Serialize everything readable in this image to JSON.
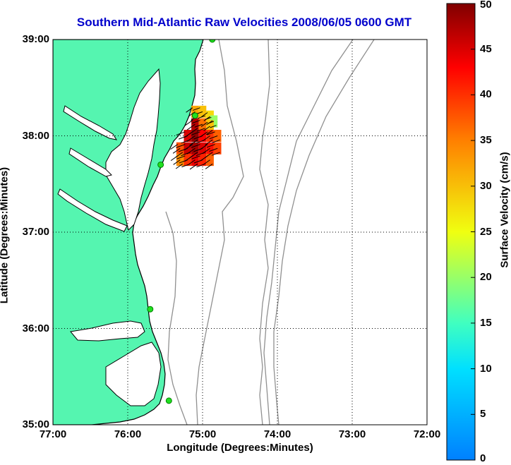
{
  "title": "Southern Mid-Atlantic Raw Velocities 2008/06/05 0600 GMT",
  "xlabel": "Longitude (Degrees:Minutes)",
  "ylabel": "Latitude (Degrees:Minutes)",
  "colorbar": {
    "label": "Surface Velocity (cm/s)",
    "ticks": [
      "0",
      "5",
      "10",
      "15",
      "20",
      "25",
      "30",
      "35",
      "40",
      "45",
      "50"
    ],
    "range": [
      0,
      50
    ]
  },
  "map": {
    "x_ticks": [
      "77:00",
      "76:00",
      "75:00",
      "74:00",
      "73:00",
      "72:00"
    ],
    "y_ticks": [
      "39:00",
      "38:00",
      "37:00",
      "36:00",
      "35:00"
    ],
    "lon_range": [
      -77,
      -72
    ],
    "lat_range": [
      35,
      39
    ],
    "grid": true,
    "land_color": "#55f5b0",
    "coast_color": "#000000",
    "bathymetry_color": "#909090"
  },
  "chart_data": {
    "type": "heatmap",
    "xlabel": "Longitude (Degrees:Minutes)",
    "ylabel": "Latitude (Degrees:Minutes)",
    "units": "cm/s",
    "cells": [
      {
        "lon": -75.1,
        "lat": 38.25,
        "speed": 32
      },
      {
        "lon": -75.0,
        "lat": 38.25,
        "speed": 30
      },
      {
        "lon": -74.9,
        "lat": 38.2,
        "speed": 28
      },
      {
        "lon": -74.85,
        "lat": 38.15,
        "speed": 20
      },
      {
        "lon": -75.1,
        "lat": 38.12,
        "speed": 47
      },
      {
        "lon": -75.0,
        "lat": 38.12,
        "speed": 36
      },
      {
        "lon": -74.9,
        "lat": 38.1,
        "speed": 30
      },
      {
        "lon": -75.2,
        "lat": 38.0,
        "speed": 45
      },
      {
        "lon": -75.1,
        "lat": 38.0,
        "speed": 49
      },
      {
        "lon": -75.0,
        "lat": 38.0,
        "speed": 43
      },
      {
        "lon": -74.9,
        "lat": 38.0,
        "speed": 40
      },
      {
        "lon": -74.8,
        "lat": 38.0,
        "speed": 37
      },
      {
        "lon": -75.3,
        "lat": 37.87,
        "speed": 38
      },
      {
        "lon": -75.2,
        "lat": 37.87,
        "speed": 46
      },
      {
        "lon": -75.1,
        "lat": 37.87,
        "speed": 48
      },
      {
        "lon": -75.0,
        "lat": 37.87,
        "speed": 45
      },
      {
        "lon": -74.9,
        "lat": 37.87,
        "speed": 42
      },
      {
        "lon": -74.8,
        "lat": 37.87,
        "speed": 39
      },
      {
        "lon": -75.3,
        "lat": 37.75,
        "speed": 34
      },
      {
        "lon": -75.2,
        "lat": 37.75,
        "speed": 40
      },
      {
        "lon": -75.1,
        "lat": 37.75,
        "speed": 44
      },
      {
        "lon": -75.0,
        "lat": 37.75,
        "speed": 41
      },
      {
        "lon": -74.9,
        "lat": 37.75,
        "speed": 37
      }
    ],
    "stations": [
      {
        "lon": -74.87,
        "lat": 39.0
      },
      {
        "lon": -75.1,
        "lat": 38.21
      },
      {
        "lon": -75.56,
        "lat": 37.7
      },
      {
        "lon": -75.7,
        "lat": 36.2
      },
      {
        "lon": -75.45,
        "lat": 35.25
      }
    ]
  }
}
